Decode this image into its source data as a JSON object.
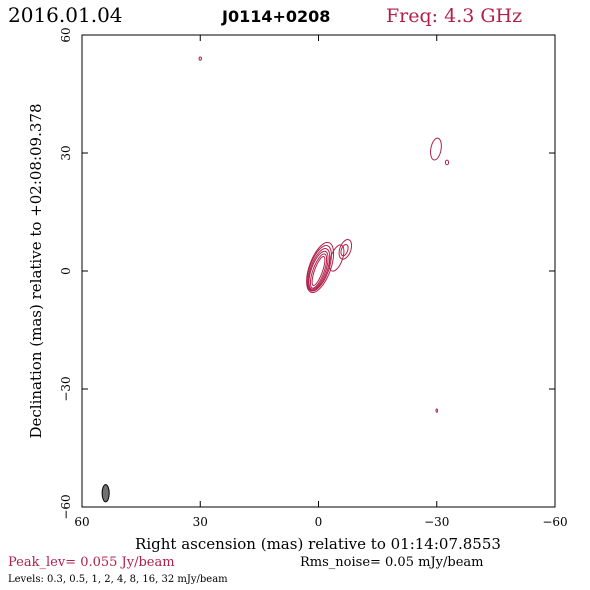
{
  "header": {
    "date": "2016.01.04",
    "source": "J0114+0208",
    "freq": "Freq: 4.3 GHz"
  },
  "footer": {
    "peak": "Peak_lev=  0.055 Jy/beam",
    "rms": "Rms_noise= 0.05 mJy/beam",
    "levels": "Levels: 0.3, 0.5,    1,    2,    4,    8,   16,   32 mJy/beam"
  },
  "colors": {
    "contour": "#b0204a",
    "beam": "#707070"
  },
  "chart_data": {
    "type": "contour",
    "xlabel": "Right ascension (mas) relative to 01:14:07.8553",
    "ylabel": "Declination (mas) relative to +02:08:09.378",
    "xlim": [
      60,
      -60
    ],
    "ylim": [
      -60,
      60
    ],
    "x_ticks": [
      "60",
      "30",
      "0",
      "−30",
      "−60"
    ],
    "y_ticks": [
      "60",
      "30",
      "0",
      "−30",
      "−60"
    ],
    "x_tick_values": [
      60,
      30,
      0,
      -30,
      -60
    ],
    "y_tick_values": [
      60,
      30,
      0,
      -30,
      -60
    ],
    "levels_mJy": [
      0.3,
      0.5,
      1,
      2,
      4,
      8,
      16,
      32
    ],
    "peak_Jy_per_beam": 0.055,
    "rms_mJy_per_beam": 0.05,
    "contours": [
      {
        "component": "core",
        "x": 0,
        "y": 0,
        "a": 3.9,
        "b": 1.0,
        "pa": 20
      },
      {
        "component": "core",
        "x": 0,
        "y": 0,
        "a": 4.6,
        "b": 1.4,
        "pa": 20
      },
      {
        "component": "core",
        "x": 0,
        "y": 0.2,
        "a": 5.1,
        "b": 1.8,
        "pa": 20
      },
      {
        "component": "core",
        "x": -0.1,
        "y": 0.4,
        "a": 5.6,
        "b": 2.1,
        "pa": 20
      },
      {
        "component": "core",
        "x": -0.2,
        "y": 0.7,
        "a": 6.1,
        "b": 2.4,
        "pa": 20
      },
      {
        "component": "core",
        "x": -0.4,
        "y": 0.9,
        "a": 6.7,
        "b": 2.7,
        "pa": 20
      },
      {
        "component": "jet",
        "x": -6.8,
        "y": 5.5,
        "a": 2.6,
        "b": 1.4,
        "pa": 20
      },
      {
        "component": "jet",
        "x": -6.6,
        "y": 5.3,
        "a": 1.5,
        "b": 0.8,
        "pa": 20
      },
      {
        "component": "jet",
        "x": -4.6,
        "y": 3.3,
        "a": 3.5,
        "b": 1.5,
        "pa": 20
      },
      {
        "component": "blob",
        "x": -29.8,
        "y": 31.0,
        "a": 2.8,
        "b": 1.3,
        "pa": 10
      },
      {
        "component": "blob",
        "x": -32.6,
        "y": 27.6,
        "a": 0.6,
        "b": 0.4,
        "pa": 0
      },
      {
        "component": "blob",
        "x": 30.0,
        "y": 54.0,
        "a": 0.4,
        "b": 0.3,
        "pa": 0
      },
      {
        "component": "blob",
        "x": -30.0,
        "y": -35.5,
        "a": 0.4,
        "b": 0.2,
        "pa": 0
      }
    ],
    "beam": {
      "x": 54.0,
      "y": -56.5,
      "a": 2.2,
      "b": 0.9,
      "pa": 0
    },
    "grid": false
  }
}
